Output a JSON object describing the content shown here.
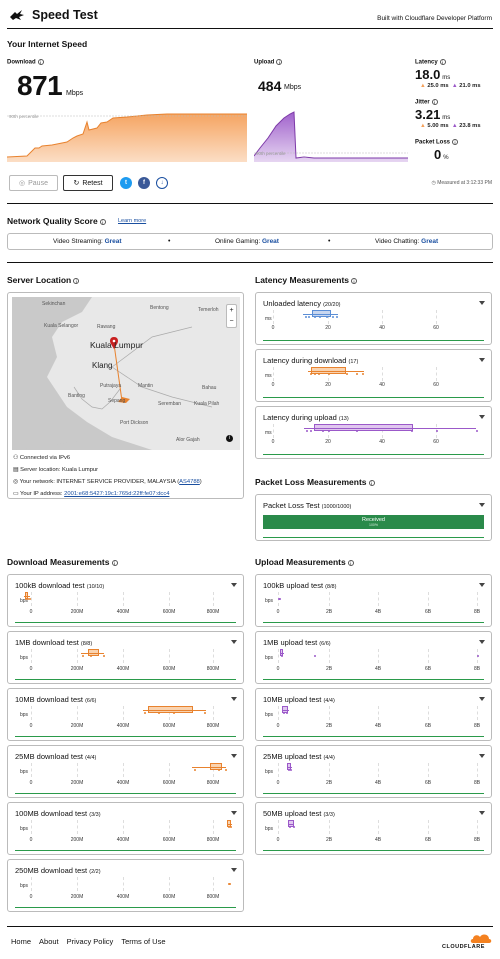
{
  "header": {
    "title": "Speed Test",
    "built_with": "Built with Cloudflare Developer Platform",
    "logo_icon": "rabbit-logo-icon"
  },
  "speed": {
    "section_title": "Your Internet Speed",
    "download_label": "Download",
    "download_value": "871",
    "download_unit": "Mbps",
    "percentile_label": "90th percentile",
    "upload_label": "Upload",
    "upload_value": "484",
    "upload_unit": "Mbps",
    "latency_label": "Latency",
    "latency_value": "18.0",
    "latency_unit": "ms",
    "latency_up": "25.0 ms",
    "latency_down": "21.0 ms",
    "jitter_label": "Jitter",
    "jitter_value": "3.21",
    "jitter_unit": "ms",
    "jitter_up": "5.00 ms",
    "jitter_down": "23.8 ms",
    "loss_label": "Packet Loss",
    "loss_value": "0",
    "loss_unit": "%",
    "measured_at": "Measured at 3:12:33 PM"
  },
  "actions": {
    "pause": "Pause",
    "retest": "Retest"
  },
  "quality": {
    "title": "Network Quality Score",
    "learn_more": "Learn more",
    "items": [
      {
        "label": "Video Streaming:",
        "value": "Great"
      },
      {
        "label": "Online Gaming:",
        "value": "Great"
      },
      {
        "label": "Video Chatting:",
        "value": "Great"
      }
    ]
  },
  "server": {
    "title": "Server Location",
    "map_labels": [
      "Sekinchan",
      "Bentong",
      "Temerloh",
      "Kuala Selangor",
      "Rawang",
      "Kuala Lumpur",
      "Klang",
      "Putrajaya",
      "Mantin",
      "Bahau",
      "Banting",
      "Sepang",
      "Seremban",
      "Kuala Pilah",
      "Port Dickson",
      "Alor Gajah"
    ],
    "zoom_in": "+",
    "zoom_out": "−",
    "connected": "Connected via IPv6",
    "location": "Server location: Kuala Lumpur",
    "network_prefix": "Your network: INTERNET SERVICE PROVIDER, MALAYSIA (",
    "network_asn": "AS4788",
    "network_suffix": ")",
    "ip_prefix": "Your IP address: ",
    "ip": "2001:e68:5427:19c1:765d:22ff:fe07:dcc4"
  },
  "latency": {
    "title": "Latency Measurements",
    "unit": "ms",
    "ticks": [
      "0",
      "20",
      "40",
      "60"
    ],
    "tests": [
      {
        "name": "Unloaded latency",
        "count": "(20/20)"
      },
      {
        "name": "Latency during download",
        "count": "(17)"
      },
      {
        "name": "Latency during upload",
        "count": "(13)"
      }
    ]
  },
  "packet_loss": {
    "title": "Packet Loss Measurements",
    "test": "Packet Loss Test",
    "count": "(1000/1000)",
    "received": "Received",
    "received_pct": "100%"
  },
  "download": {
    "title": "Download Measurements",
    "unit": "bps",
    "ticks": [
      "0",
      "200M",
      "400M",
      "600M",
      "800M"
    ],
    "tests": [
      {
        "name": "100kB download test",
        "count": "(10/10)"
      },
      {
        "name": "1MB download test",
        "count": "(8/8)"
      },
      {
        "name": "10MB download test",
        "count": "(6/6)"
      },
      {
        "name": "25MB download test",
        "count": "(4/4)"
      },
      {
        "name": "100MB download test",
        "count": "(3/3)"
      },
      {
        "name": "250MB download test",
        "count": "(2/2)"
      }
    ]
  },
  "upload": {
    "title": "Upload Measurements",
    "unit": "bps",
    "ticks": [
      "0",
      "2B",
      "4B",
      "6B",
      "8B"
    ],
    "tests": [
      {
        "name": "100kB upload test",
        "count": "(8/8)"
      },
      {
        "name": "1MB upload test",
        "count": "(6/6)"
      },
      {
        "name": "10MB upload test",
        "count": "(4/4)"
      },
      {
        "name": "25MB upload test",
        "count": "(4/4)"
      },
      {
        "name": "50MB upload test",
        "count": "(3/3)"
      }
    ]
  },
  "footer": {
    "links": [
      "Home",
      "About",
      "Privacy Policy",
      "Terms of Use"
    ],
    "brand": "CLOUDFLARE"
  },
  "colors": {
    "download": "#f5a05a",
    "upload": "#9b59c9",
    "latency": "#5b8ed6",
    "good": "#1a4fa0",
    "green": "#2a8a4a"
  }
}
